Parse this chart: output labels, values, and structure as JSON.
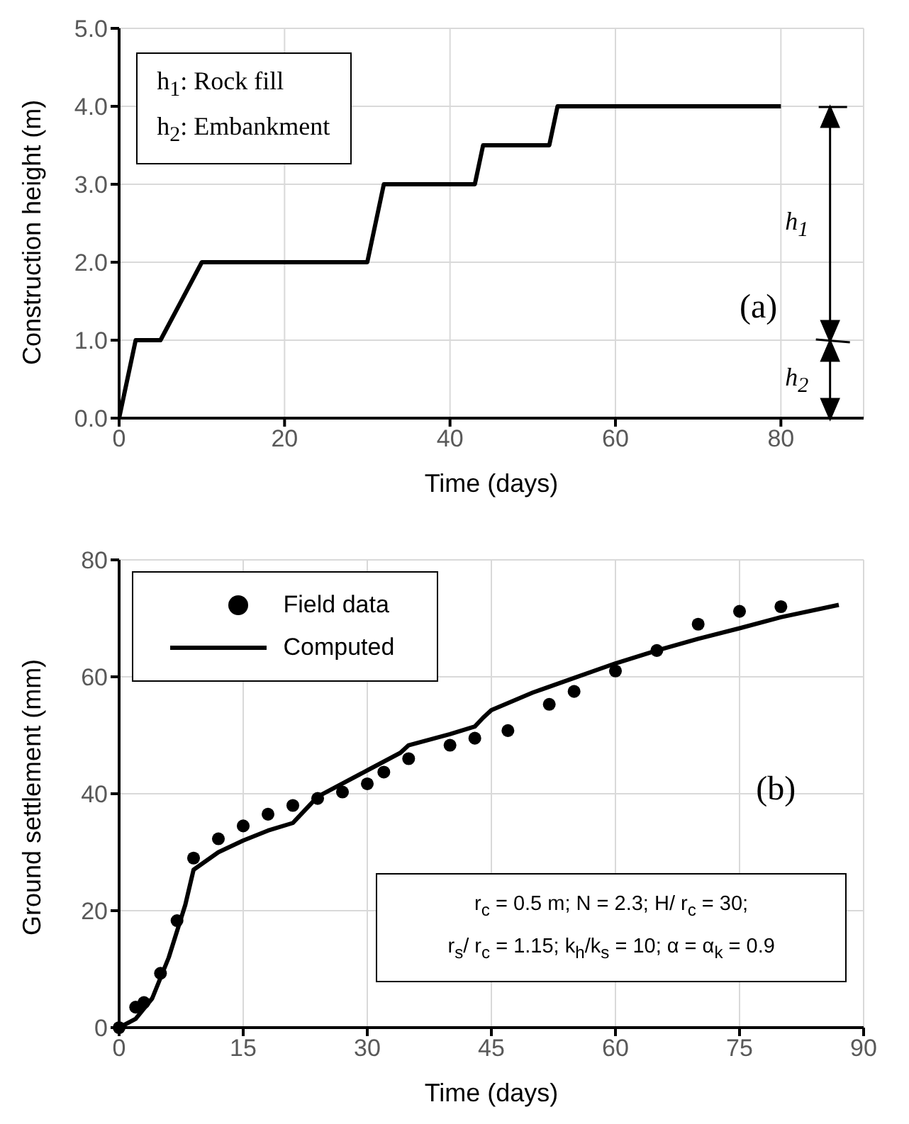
{
  "chart_data": [
    {
      "type": "line",
      "xlabel": "Time (days)",
      "ylabel": "Construction height (m)",
      "xlim": [
        0,
        90
      ],
      "xticks": [
        0,
        20,
        40,
        60,
        80
      ],
      "ylim": [
        0,
        5
      ],
      "yticks": [
        {
          "value": 0,
          "label": "0.0"
        },
        {
          "value": 1,
          "label": "1.0"
        },
        {
          "value": 2,
          "label": "2.0"
        },
        {
          "value": 3,
          "label": "3.0"
        },
        {
          "value": 4,
          "label": "4.0"
        },
        {
          "value": 5,
          "label": "5.0"
        }
      ],
      "grid": true,
      "marker": "none",
      "series": [
        {
          "color": "#000000",
          "x": [
            0,
            2,
            5,
            10,
            30,
            32,
            43,
            44,
            52,
            53,
            80
          ],
          "values": [
            0,
            1,
            1,
            2,
            2,
            3,
            3,
            3.5,
            3.5,
            4,
            4
          ]
        }
      ],
      "annotations": [
        "h$_{1}$: Rock fill",
        "h$_{2}$: Embankment",
        "(a)",
        "h$_{1}$",
        "h$_{2}$"
      ]
    },
    {
      "type": "line",
      "xlabel": "Time (days)",
      "ylabel": "Ground settlement (mm)",
      "xlim": [
        0,
        90
      ],
      "xticks": [
        0,
        15,
        30,
        45,
        60,
        75,
        90
      ],
      "ylim": [
        0,
        80
      ],
      "yticks": [
        0,
        20,
        40,
        60,
        80
      ],
      "grid": true,
      "legend": "top left",
      "series": [
        {
          "name": "Field data",
          "type": "scatter",
          "marker": "circle",
          "color": "#000000",
          "x": [
            0,
            2,
            3,
            5,
            7,
            9,
            12,
            15,
            18,
            21,
            24,
            27,
            30,
            32,
            35,
            40,
            43,
            47,
            52,
            55,
            60,
            65,
            70,
            75,
            80
          ],
          "values": [
            0,
            3.5,
            4.3,
            9.3,
            18.3,
            29,
            32.3,
            34.5,
            36.5,
            38,
            39.2,
            40.3,
            41.7,
            43.7,
            46,
            48.3,
            49.5,
            50.8,
            55.3,
            57.5,
            61,
            64.5,
            69,
            71.2,
            72
          ]
        },
        {
          "name": "Computed",
          "marker": "none",
          "color": "#000000",
          "x": [
            0,
            2,
            4,
            6,
            8,
            9,
            12,
            15,
            18,
            21,
            22,
            24,
            30,
            34,
            35,
            40,
            43,
            44,
            45,
            50,
            55,
            60,
            65,
            70,
            75,
            80,
            87
          ],
          "values": [
            0,
            1.5,
            5,
            12,
            21,
            27,
            30,
            32,
            33.7,
            35,
            36.5,
            39.5,
            44,
            47,
            48.3,
            50.2,
            51.5,
            53,
            54.3,
            57.3,
            59.8,
            62.3,
            64.5,
            66.5,
            68.3,
            70.2,
            72.3
          ]
        }
      ],
      "annotations": [
        "(b)",
        "r$_{c}$ = 0.5 m; N = 2.3; H/ r$_{c}$ = 30;",
        "r$_{s}$/ r$_{c}$ = 1.15; k$_{h}$/k$_{s}$ = 10; α = α$_{k}$ = 0.9"
      ]
    }
  ]
}
